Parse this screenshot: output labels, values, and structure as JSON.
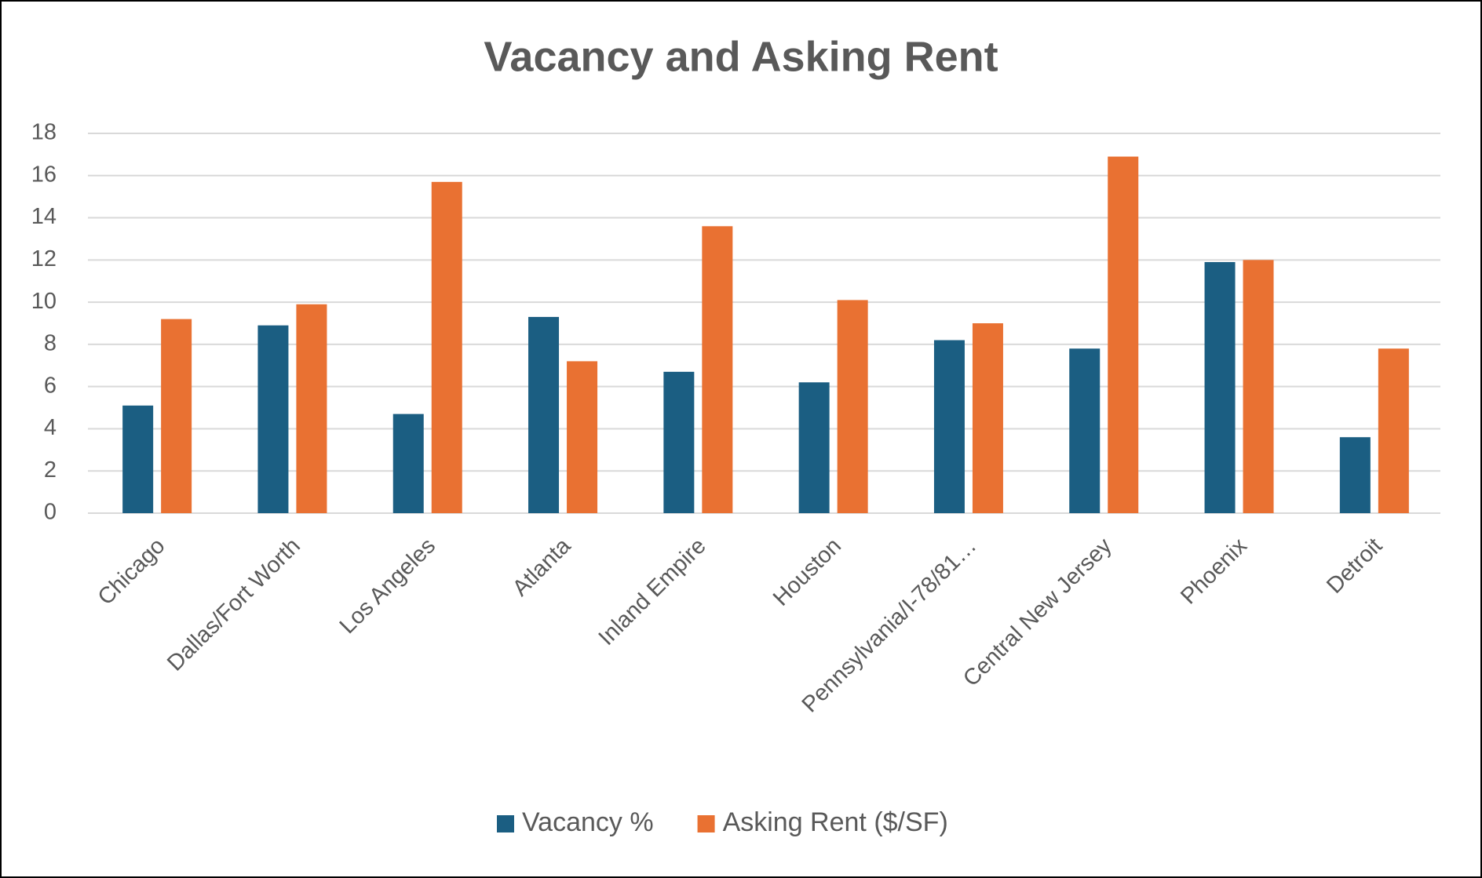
{
  "chart_data": {
    "type": "bar",
    "title": "Vacancy and Asking Rent",
    "categories": [
      "Chicago",
      "Dallas/Fort Worth",
      "Los Angeles",
      "Atlanta",
      "Inland Empire",
      "Houston",
      "Pennsylvania/I-78/81…",
      "Central New Jersey",
      "Phoenix",
      "Detroit"
    ],
    "series": [
      {
        "name": "Vacancy %",
        "color": "#1b5e82",
        "values": [
          5.1,
          8.9,
          4.7,
          9.3,
          6.7,
          6.2,
          8.2,
          7.8,
          11.9,
          3.6
        ]
      },
      {
        "name": "Asking Rent ($/SF)",
        "color": "#e97132",
        "values": [
          9.2,
          9.9,
          15.7,
          7.2,
          13.6,
          10.1,
          9.0,
          16.9,
          12.0,
          7.8
        ]
      }
    ],
    "ylim": [
      0,
      18
    ],
    "yticks": [
      0,
      2,
      4,
      6,
      8,
      10,
      12,
      14,
      16,
      18
    ],
    "grid": true,
    "legend": "bottom"
  }
}
